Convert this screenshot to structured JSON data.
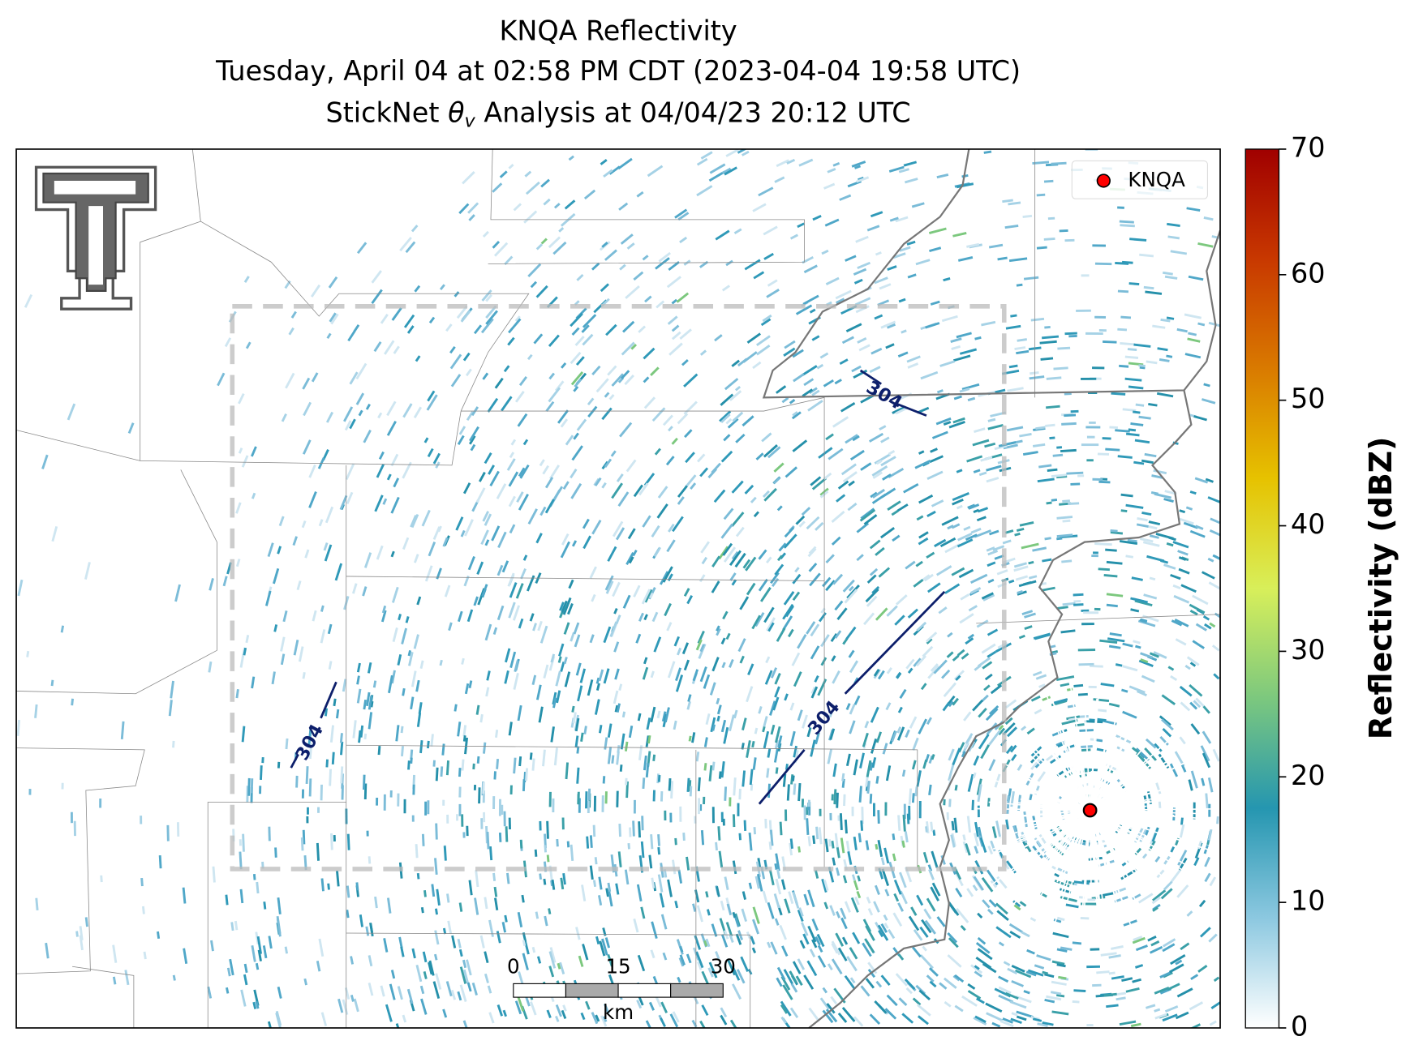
{
  "title": {
    "line1": "KNQA Reflectivity",
    "line2": "Tuesday, April 04 at 02:58 PM CDT (2023-04-04 19:58 UTC)",
    "line3": {
      "prefix": "StickNet",
      "symbol": "θ",
      "subscript": "v",
      "suffix": "Analysis at 04/04/23 20:12 UTC"
    }
  },
  "map": {
    "legend": {
      "label": "KNQA",
      "color": "#ff0000"
    },
    "contours": [
      {
        "label": "304",
        "color": "#0d1f6b"
      },
      {
        "label": "304",
        "color": "#0d1f6b"
      },
      {
        "label": "304",
        "color": "#0d1f6b"
      }
    ],
    "scale_bar": {
      "ticks": [
        0,
        15,
        30
      ],
      "unit": "km"
    }
  },
  "colorbar": {
    "label": "Reflectivity (dBZ)",
    "lim": [
      0,
      70
    ],
    "ticks": [
      0,
      10,
      20,
      30,
      40,
      50,
      60,
      70
    ],
    "colors": [
      "#ffffff",
      "#8cc8e0",
      "#2596b0",
      "#7cc87e",
      "#d8ef5a",
      "#e6c200",
      "#d97a00",
      "#c83800",
      "#a00000"
    ]
  }
}
